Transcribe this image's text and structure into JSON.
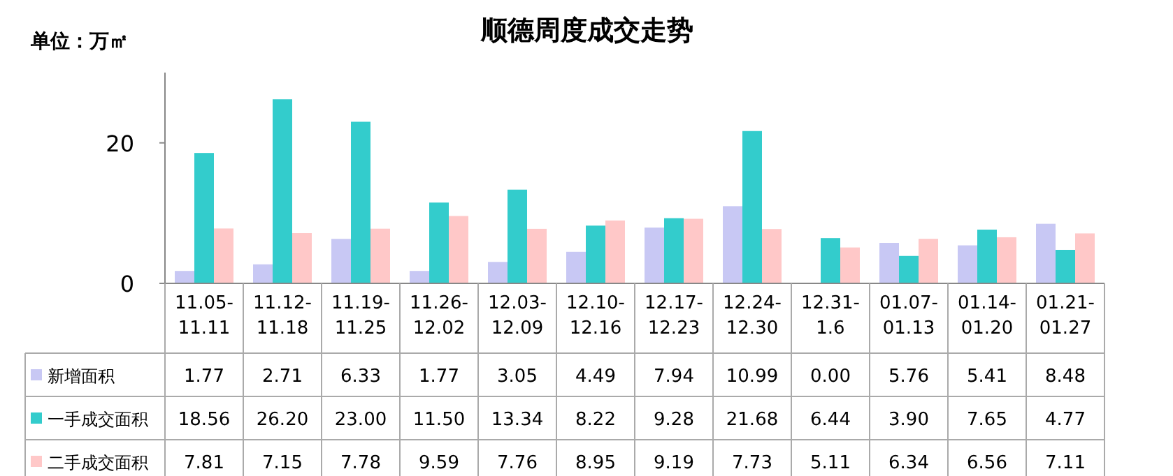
{
  "chart_data": {
    "type": "bar",
    "title": "顺德周度成交走势",
    "annotations": [
      "单位：万㎡"
    ],
    "categories": [
      "11.05-11.11",
      "11.12-11.18",
      "11.19-11.25",
      "11.26-12.02",
      "12.03-12.09",
      "12.10-12.16",
      "12.17-12.23",
      "12.24-12.30",
      "12.31-1.6",
      "01.07-01.13",
      "01.14-01.20",
      "01.21-01.27"
    ],
    "series": [
      {
        "name": "新增面积",
        "color": "#c8c8f4",
        "values": [
          1.77,
          2.71,
          6.33,
          1.77,
          3.05,
          4.49,
          7.94,
          10.99,
          0.0,
          5.76,
          5.41,
          8.48
        ],
        "value_labels": [
          "1.77",
          "2.71",
          "6.33",
          "1.77",
          "3.05",
          "4.49",
          "7.94",
          "10.99",
          "0.00",
          "5.76",
          "5.41",
          "8.48"
        ]
      },
      {
        "name": "一手成交面积",
        "color": "#33cccc",
        "values": [
          18.56,
          26.2,
          23.0,
          11.5,
          13.34,
          8.22,
          9.28,
          21.68,
          6.44,
          3.9,
          7.65,
          4.77
        ],
        "value_labels": [
          "18.56",
          "26.20",
          "23.00",
          "11.50",
          "13.34",
          "8.22",
          "9.28",
          "21.68",
          "6.44",
          "3.90",
          "7.65",
          "4.77"
        ]
      },
      {
        "name": "二手成交面积",
        "color": "#ffc8c8",
        "values": [
          7.81,
          7.15,
          7.78,
          9.59,
          7.76,
          8.95,
          9.19,
          7.73,
          5.11,
          6.34,
          6.56,
          7.11
        ],
        "value_labels": [
          "7.81",
          "7.15",
          "7.78",
          "9.59",
          "7.76",
          "8.95",
          "9.19",
          "7.73",
          "5.11",
          "6.34",
          "6.56",
          "7.11"
        ]
      }
    ],
    "ylim": [
      0,
      30
    ],
    "yticks": [
      0,
      20
    ],
    "legend": "bottom left"
  }
}
